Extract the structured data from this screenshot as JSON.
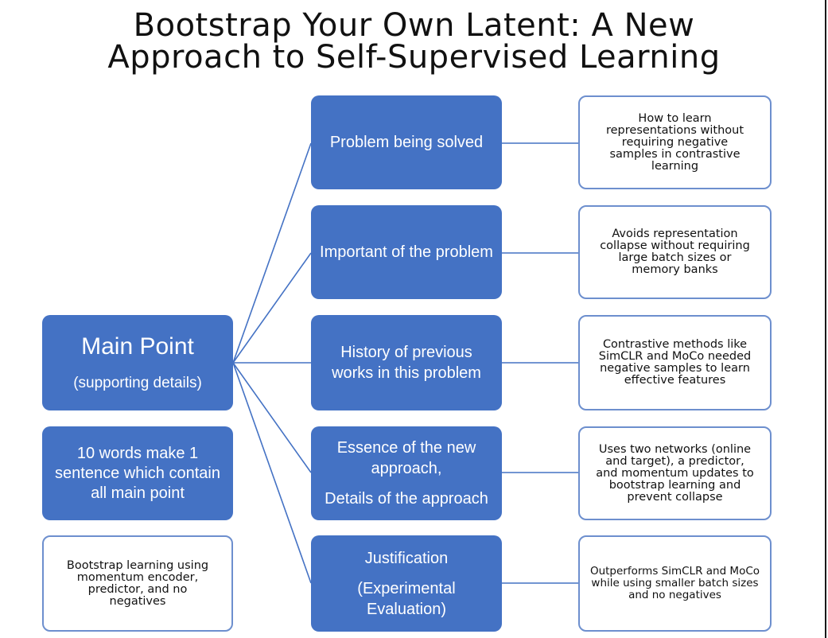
{
  "title": {
    "line1": "Bootstrap Your Own Latent: A New",
    "line2": "Approach to Self-Supervised Learning"
  },
  "main_point": {
    "title": "Main Point",
    "subtitle": "(supporting details)"
  },
  "summary_prompt": "10 words make 1 sentence which contain all main point",
  "summary_answer": "Bootstrap learning using momentum encoder, predictor, and no negatives",
  "categories": [
    {
      "lines": [
        "Problem being solved"
      ]
    },
    {
      "lines": [
        "Important of the problem"
      ]
    },
    {
      "lines": [
        "History of previous works in this problem"
      ]
    },
    {
      "lines": [
        "Essence of the new approach,",
        "Details of the approach"
      ]
    },
    {
      "lines": [
        "Justification",
        "(Experimental Evaluation)"
      ]
    }
  ],
  "details": [
    "How to learn representations without requiring negative samples in contrastive learning",
    "Avoids representation collapse without requiring large batch sizes or memory banks",
    "Contrastive methods like SimCLR and MoCo needed negative samples to learn effective features",
    "Uses two networks (online and target), a predictor, and momentum updates to bootstrap learning and prevent collapse",
    "Outperforms SimCLR and MoCo while using smaller batch sizes and no negatives"
  ],
  "colors": {
    "box_fill": "#4472c4",
    "outline": "#6d8fce",
    "connector": "#4472c4"
  }
}
